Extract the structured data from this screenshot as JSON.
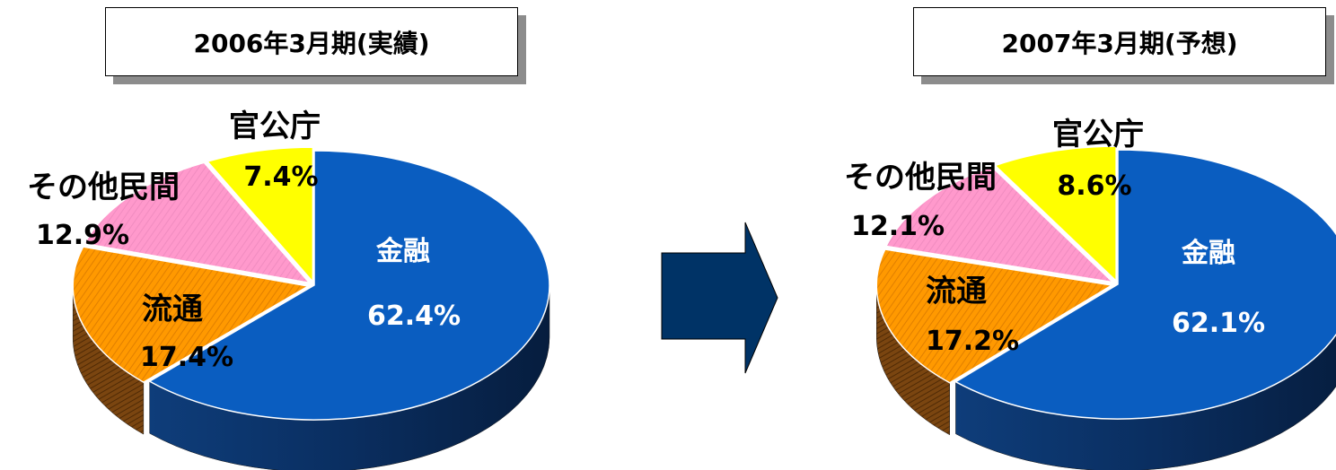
{
  "colors": {
    "金融": "#0a5dc0",
    "流通": "#ff9900",
    "その他民間": "#ff99cc",
    "官公庁": "#ffff00",
    "arrow": "#003366",
    "title_shadow": "#8c8c8c"
  },
  "arrow": {
    "direction": "right",
    "icon": "right-arrow-icon"
  },
  "chart_data": [
    {
      "type": "pie",
      "title": "2006年3月期(実績)",
      "categories": [
        "金融",
        "流通",
        "その他民間",
        "官公庁"
      ],
      "values": [
        62.4,
        17.4,
        12.9,
        7.4
      ],
      "labels": [
        "62.4%",
        "17.4%",
        "12.9%",
        "7.4%"
      ],
      "style": "3d-exploded"
    },
    {
      "type": "pie",
      "title": "2007年3月期(予想)",
      "categories": [
        "金融",
        "流通",
        "その他民間",
        "官公庁"
      ],
      "values": [
        62.1,
        17.2,
        12.1,
        8.6
      ],
      "labels": [
        "62.1%",
        "17.2%",
        "12.1%",
        "8.6%"
      ],
      "style": "3d-exploded"
    }
  ]
}
